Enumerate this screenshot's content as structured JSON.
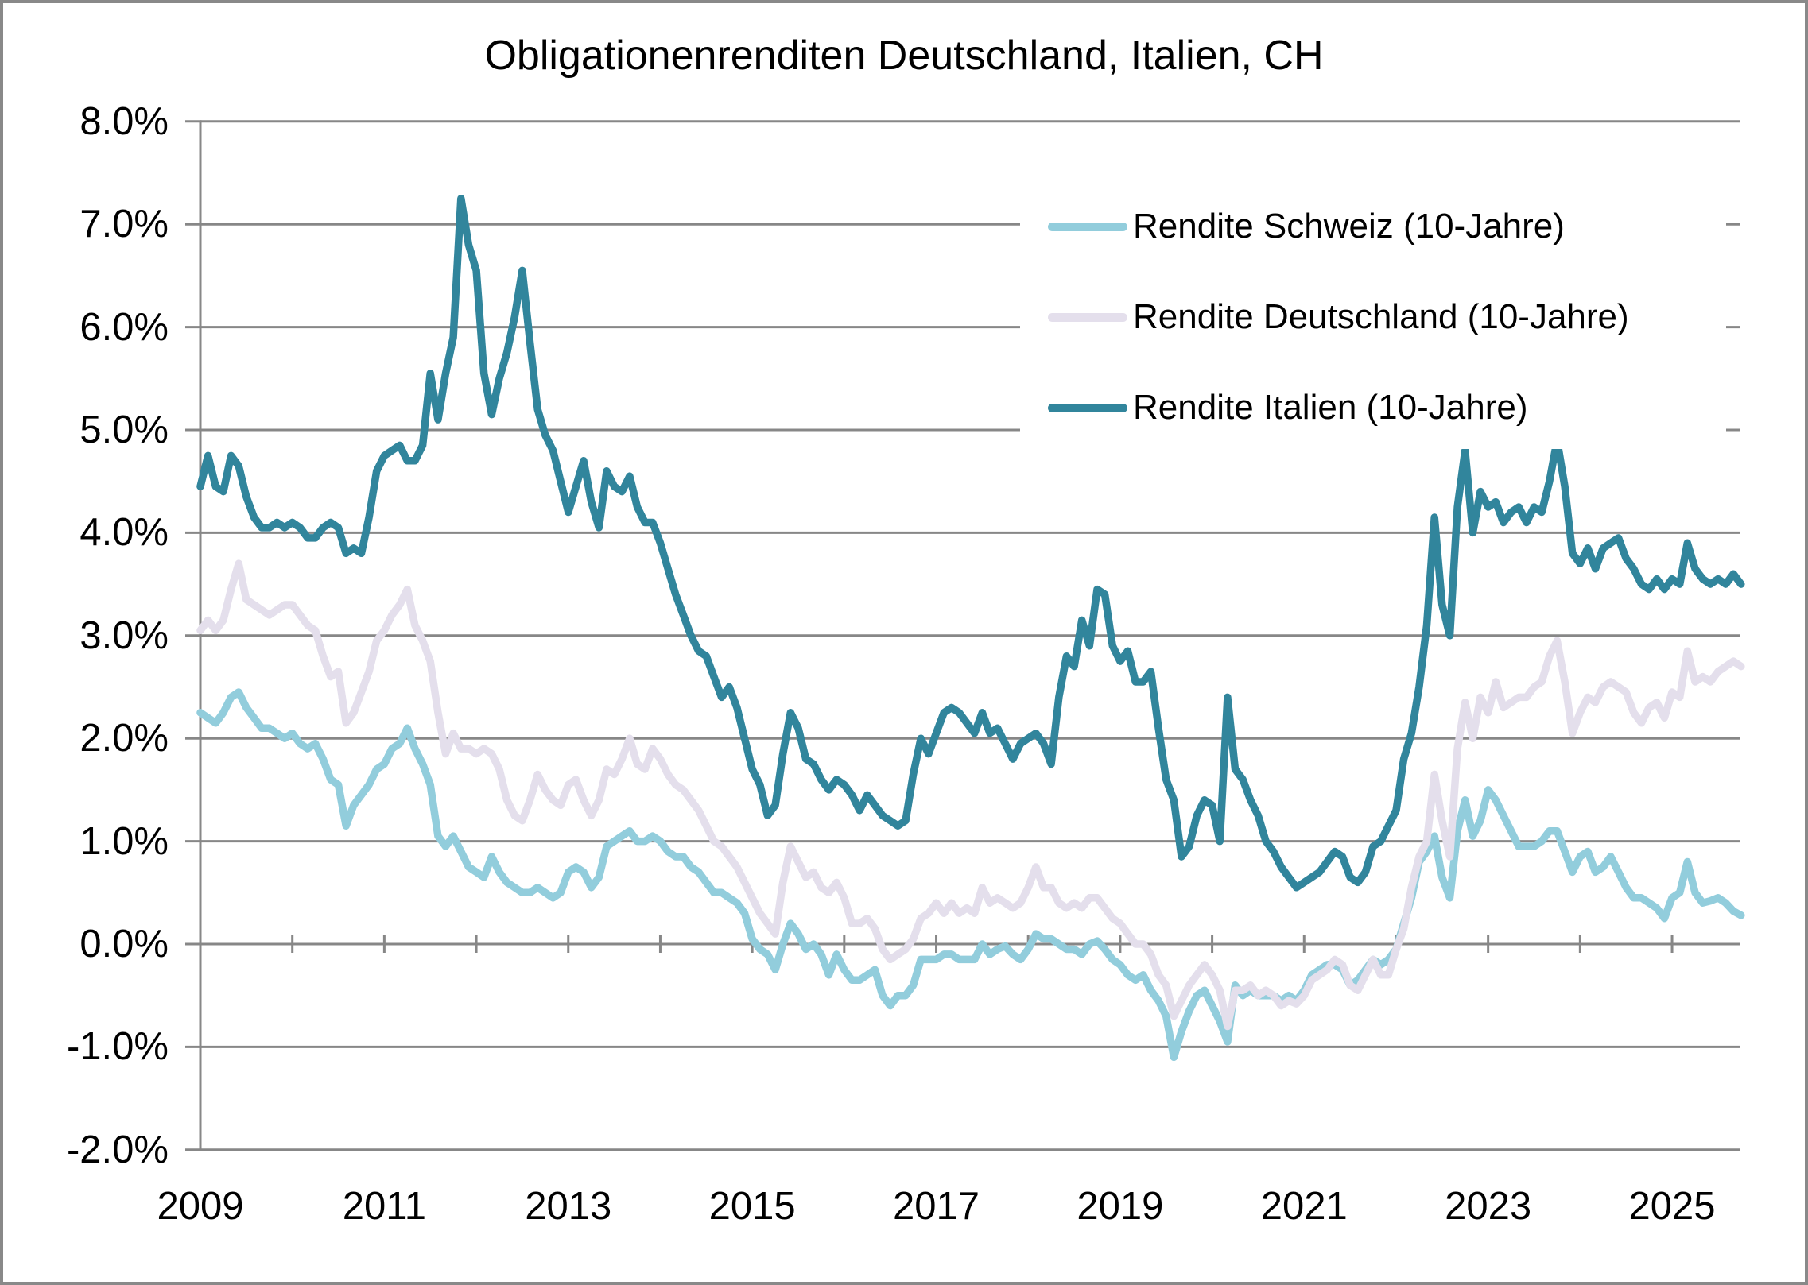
{
  "title": "Obligationenrenditen Deutschland, Italien, CH",
  "colors": {
    "background": "#ffffff",
    "frame_border": "#898989",
    "gridline": "#878787",
    "axis_line": "#878787",
    "text": "#000000",
    "series_schweiz": "#92CDDC",
    "series_deutschland": "#E4DFEC",
    "series_italien": "#31859C"
  },
  "chart_data": {
    "type": "line",
    "title": "Obligationenrenditen Deutschland, Italien, CH",
    "xlabel": "",
    "ylabel": "",
    "grid": true,
    "legend_position": "upper-right-inside",
    "y_axis": {
      "unit": "%",
      "range": [
        -2.0,
        8.0
      ],
      "tick_values": [
        8,
        7,
        6,
        5,
        4,
        3,
        2,
        1,
        0,
        -1,
        -2
      ],
      "tick_labels": [
        "8.0%",
        "7.0%",
        "6.0%",
        "5.0%",
        "4.0%",
        "3.0%",
        "2.0%",
        "1.0%",
        "0.0%",
        "-1.0%",
        "-2.0%"
      ]
    },
    "x_axis": {
      "range": [
        2009.0,
        2025.75
      ],
      "tick_years": [
        2009,
        2011,
        2013,
        2015,
        2017,
        2019,
        2021,
        2023,
        2025
      ],
      "tick_labels": [
        "2009",
        "2011",
        "2013",
        "2015",
        "2017",
        "2019",
        "2021",
        "2023",
        "2025"
      ],
      "minor_tick_years_on_zero_line": [
        2010,
        2011,
        2012,
        2013,
        2014,
        2015,
        2016,
        2017,
        2018,
        2019,
        2020,
        2021,
        2022,
        2023,
        2024,
        2025
      ]
    },
    "legend": [
      {
        "label": "Rendite Schweiz (10-Jahre)",
        "color": "#92CDDC"
      },
      {
        "label": "Rendite Deutschland (10-Jahre)",
        "color": "#E4DFEC"
      },
      {
        "label": "Rendite Italien (10-Jahre)",
        "color": "#31859C"
      }
    ],
    "series": [
      {
        "name": "Rendite Schweiz (10-Jahre)",
        "color": "#92CDDC",
        "unit": "%",
        "values_by_year": {
          "2009": [
            2.25,
            2.2,
            2.15,
            2.25,
            2.4,
            2.45,
            2.3,
            2.2,
            2.1,
            2.1,
            2.05,
            2.0
          ],
          "2010": [
            2.05,
            1.95,
            1.9,
            1.95,
            1.8,
            1.6,
            1.55,
            1.15,
            1.35,
            1.45,
            1.55,
            1.7
          ],
          "2011": [
            1.75,
            1.9,
            1.95,
            2.1,
            1.9,
            1.75,
            1.55,
            1.05,
            0.95,
            1.05,
            0.9,
            0.75
          ],
          "2012": [
            0.7,
            0.65,
            0.85,
            0.7,
            0.6,
            0.55,
            0.5,
            0.5,
            0.55,
            0.5,
            0.45,
            0.5
          ],
          "2013": [
            0.7,
            0.75,
            0.7,
            0.55,
            0.65,
            0.95,
            1.0,
            1.05,
            1.1,
            1.0,
            1.0,
            1.05
          ],
          "2014": [
            1.0,
            0.9,
            0.85,
            0.85,
            0.75,
            0.7,
            0.6,
            0.5,
            0.5,
            0.45,
            0.4,
            0.3
          ],
          "2015": [
            0.05,
            -0.05,
            -0.1,
            -0.25,
            0.0,
            0.2,
            0.1,
            -0.05,
            0.0,
            -0.1,
            -0.3,
            -0.1
          ],
          "2016": [
            -0.25,
            -0.35,
            -0.35,
            -0.3,
            -0.25,
            -0.5,
            -0.6,
            -0.5,
            -0.5,
            -0.4,
            -0.15,
            -0.15
          ],
          "2017": [
            -0.15,
            -0.1,
            -0.1,
            -0.15,
            -0.15,
            -0.15,
            0.0,
            -0.1,
            -0.05,
            -0.02,
            -0.1,
            -0.15
          ],
          "2018": [
            -0.05,
            0.1,
            0.05,
            0.05,
            0.0,
            -0.05,
            -0.05,
            -0.1,
            0.0,
            0.03,
            -0.05,
            -0.15
          ],
          "2019": [
            -0.2,
            -0.3,
            -0.35,
            -0.3,
            -0.45,
            -0.55,
            -0.7,
            -1.1,
            -0.85,
            -0.65,
            -0.5,
            -0.45
          ],
          "2020": [
            -0.6,
            -0.75,
            -0.95,
            -0.4,
            -0.5,
            -0.45,
            -0.5,
            -0.5,
            -0.5,
            -0.55,
            -0.5,
            -0.55
          ],
          "2021": [
            -0.45,
            -0.3,
            -0.25,
            -0.2,
            -0.2,
            -0.25,
            -0.4,
            -0.35,
            -0.25,
            -0.15,
            -0.2,
            -0.15
          ],
          "2022": [
            -0.05,
            0.2,
            0.45,
            0.8,
            0.9,
            1.05,
            0.65,
            0.45,
            1.1,
            1.4,
            1.05,
            1.2
          ],
          "2023": [
            1.5,
            1.4,
            1.25,
            1.1,
            0.95,
            0.95,
            0.95,
            1.0,
            1.1,
            1.1,
            0.9,
            0.7
          ],
          "2024": [
            0.85,
            0.9,
            0.7,
            0.75,
            0.85,
            0.7,
            0.55,
            0.45,
            0.45,
            0.4,
            0.35,
            0.25
          ],
          "2025": [
            0.45,
            0.5,
            0.8,
            0.5,
            0.4,
            0.42,
            0.45,
            0.4,
            0.32,
            0.28
          ]
        }
      },
      {
        "name": "Rendite Deutschland (10-Jahre)",
        "color": "#E4DFEC",
        "unit": "%",
        "values_by_year": {
          "2009": [
            3.05,
            3.15,
            3.05,
            3.15,
            3.45,
            3.7,
            3.35,
            3.3,
            3.25,
            3.2,
            3.25,
            3.3
          ],
          "2010": [
            3.3,
            3.2,
            3.1,
            3.05,
            2.8,
            2.6,
            2.65,
            2.15,
            2.25,
            2.45,
            2.65,
            2.95
          ],
          "2011": [
            3.05,
            3.2,
            3.3,
            3.45,
            3.1,
            2.95,
            2.75,
            2.25,
            1.85,
            2.05,
            1.9,
            1.9
          ],
          "2012": [
            1.85,
            1.9,
            1.85,
            1.7,
            1.4,
            1.25,
            1.2,
            1.4,
            1.65,
            1.5,
            1.4,
            1.35
          ],
          "2013": [
            1.55,
            1.6,
            1.4,
            1.25,
            1.4,
            1.7,
            1.65,
            1.8,
            2.0,
            1.75,
            1.7,
            1.9
          ],
          "2014": [
            1.8,
            1.65,
            1.55,
            1.5,
            1.4,
            1.3,
            1.15,
            1.0,
            0.95,
            0.85,
            0.75,
            0.6
          ],
          "2015": [
            0.45,
            0.3,
            0.2,
            0.1,
            0.6,
            0.95,
            0.8,
            0.65,
            0.7,
            0.55,
            0.5,
            0.6
          ],
          "2016": [
            0.45,
            0.2,
            0.2,
            0.25,
            0.15,
            -0.05,
            -0.15,
            -0.1,
            -0.05,
            0.05,
            0.25,
            0.3
          ],
          "2017": [
            0.4,
            0.3,
            0.4,
            0.3,
            0.35,
            0.3,
            0.55,
            0.4,
            0.45,
            0.4,
            0.35,
            0.4
          ],
          "2018": [
            0.55,
            0.75,
            0.55,
            0.55,
            0.4,
            0.35,
            0.4,
            0.35,
            0.45,
            0.45,
            0.35,
            0.25
          ],
          "2019": [
            0.2,
            0.1,
            0.0,
            0.0,
            -0.1,
            -0.3,
            -0.4,
            -0.7,
            -0.55,
            -0.4,
            -0.3,
            -0.2
          ],
          "2020": [
            -0.3,
            -0.45,
            -0.8,
            -0.45,
            -0.45,
            -0.4,
            -0.5,
            -0.45,
            -0.5,
            -0.6,
            -0.55,
            -0.58
          ],
          "2021": [
            -0.5,
            -0.35,
            -0.3,
            -0.25,
            -0.15,
            -0.2,
            -0.4,
            -0.45,
            -0.3,
            -0.15,
            -0.3,
            -0.3
          ],
          "2022": [
            -0.05,
            0.15,
            0.55,
            0.85,
            1.0,
            1.65,
            1.2,
            0.85,
            1.9,
            2.35,
            2.0,
            2.4
          ],
          "2023": [
            2.25,
            2.55,
            2.3,
            2.35,
            2.4,
            2.4,
            2.5,
            2.55,
            2.8,
            2.95,
            2.55,
            2.05
          ],
          "2024": [
            2.25,
            2.4,
            2.35,
            2.5,
            2.55,
            2.5,
            2.45,
            2.25,
            2.15,
            2.3,
            2.35,
            2.2
          ],
          "2025": [
            2.45,
            2.4,
            2.85,
            2.55,
            2.6,
            2.55,
            2.65,
            2.7,
            2.75,
            2.7
          ]
        }
      },
      {
        "name": "Rendite Italien (10-Jahre)",
        "color": "#31859C",
        "unit": "%",
        "values_by_year": {
          "2009": [
            4.45,
            4.75,
            4.45,
            4.4,
            4.75,
            4.65,
            4.35,
            4.15,
            4.05,
            4.05,
            4.1,
            4.05
          ],
          "2010": [
            4.1,
            4.05,
            3.95,
            3.95,
            4.05,
            4.1,
            4.05,
            3.8,
            3.85,
            3.8,
            4.15,
            4.6
          ],
          "2011": [
            4.75,
            4.8,
            4.85,
            4.7,
            4.7,
            4.85,
            5.55,
            5.1,
            5.55,
            5.9,
            7.25,
            6.8
          ],
          "2012": [
            6.55,
            5.55,
            5.15,
            5.5,
            5.75,
            6.1,
            6.55,
            5.85,
            5.2,
            4.95,
            4.8,
            4.5
          ],
          "2013": [
            4.2,
            4.45,
            4.7,
            4.3,
            4.05,
            4.6,
            4.45,
            4.4,
            4.55,
            4.25,
            4.1,
            4.1
          ],
          "2014": [
            3.9,
            3.65,
            3.4,
            3.2,
            3.0,
            2.85,
            2.8,
            2.6,
            2.4,
            2.5,
            2.3,
            2.0
          ],
          "2015": [
            1.7,
            1.55,
            1.25,
            1.35,
            1.85,
            2.25,
            2.1,
            1.8,
            1.75,
            1.6,
            1.5,
            1.6
          ],
          "2016": [
            1.55,
            1.45,
            1.3,
            1.45,
            1.35,
            1.25,
            1.2,
            1.15,
            1.2,
            1.65,
            2.0,
            1.85
          ],
          "2017": [
            2.05,
            2.25,
            2.3,
            2.25,
            2.15,
            2.05,
            2.25,
            2.05,
            2.1,
            1.95,
            1.8,
            1.95
          ],
          "2018": [
            2.0,
            2.05,
            1.95,
            1.75,
            2.4,
            2.8,
            2.7,
            3.15,
            2.9,
            3.45,
            3.4,
            2.9
          ],
          "2019": [
            2.75,
            2.85,
            2.55,
            2.55,
            2.65,
            2.1,
            1.6,
            1.4,
            0.85,
            0.95,
            1.25,
            1.4
          ],
          "2020": [
            1.35,
            1.0,
            2.4,
            1.7,
            1.6,
            1.4,
            1.25,
            1.0,
            0.9,
            0.75,
            0.65,
            0.55
          ],
          "2021": [
            0.6,
            0.65,
            0.7,
            0.8,
            0.9,
            0.85,
            0.65,
            0.6,
            0.7,
            0.95,
            1.0,
            1.15
          ],
          "2022": [
            1.3,
            1.8,
            2.05,
            2.5,
            3.1,
            4.15,
            3.3,
            3.0,
            4.25,
            4.8,
            4.0,
            4.4
          ],
          "2023": [
            4.25,
            4.3,
            4.1,
            4.2,
            4.25,
            4.1,
            4.25,
            4.2,
            4.5,
            4.9,
            4.45,
            3.8
          ],
          "2024": [
            3.7,
            3.85,
            3.65,
            3.85,
            3.9,
            3.95,
            3.75,
            3.65,
            3.5,
            3.45,
            3.55,
            3.45
          ],
          "2025": [
            3.55,
            3.5,
            3.9,
            3.65,
            3.55,
            3.5,
            3.55,
            3.5,
            3.6,
            3.5
          ]
        }
      }
    ]
  }
}
